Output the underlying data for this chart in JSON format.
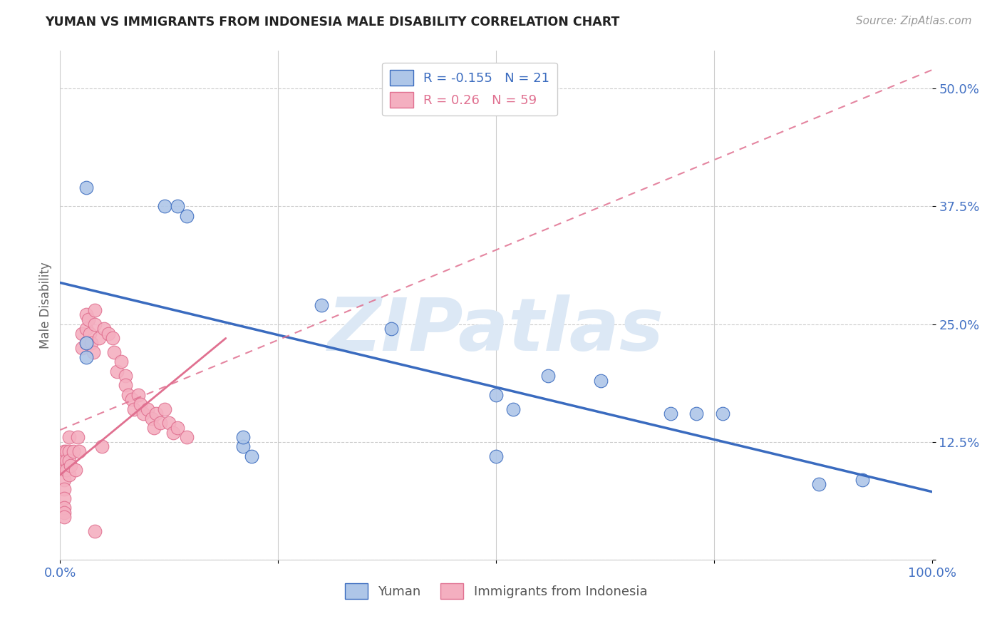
{
  "title": "YUMAN VS IMMIGRANTS FROM INDONESIA MALE DISABILITY CORRELATION CHART",
  "source": "Source: ZipAtlas.com",
  "ylabel": "Male Disability",
  "xlim": [
    0.0,
    1.0
  ],
  "ylim": [
    0.0,
    0.54
  ],
  "yticks": [
    0.0,
    0.125,
    0.25,
    0.375,
    0.5
  ],
  "ytick_labels": [
    "",
    "12.5%",
    "25.0%",
    "37.5%",
    "50.0%"
  ],
  "xticks": [
    0.0,
    0.25,
    0.5,
    0.75,
    1.0
  ],
  "xtick_labels": [
    "0.0%",
    "",
    "",
    "",
    "100.0%"
  ],
  "blue_R": -0.155,
  "blue_N": 21,
  "pink_R": 0.26,
  "pink_N": 59,
  "blue_color": "#aec6e8",
  "pink_color": "#f4afc0",
  "blue_line_color": "#3a6bbf",
  "pink_line_color": "#e07090",
  "watermark": "ZIPatlas",
  "watermark_color": "#dce8f5",
  "legend_label_blue": "Yuman",
  "legend_label_pink": "Immigrants from Indonesia",
  "blue_x": [
    0.03,
    0.12,
    0.135,
    0.145,
    0.3,
    0.38,
    0.5,
    0.52,
    0.56,
    0.62,
    0.7,
    0.73,
    0.76,
    0.87,
    0.92,
    0.03,
    0.03,
    0.21,
    0.22,
    0.21,
    0.5
  ],
  "blue_y": [
    0.395,
    0.375,
    0.375,
    0.365,
    0.27,
    0.245,
    0.175,
    0.16,
    0.195,
    0.19,
    0.155,
    0.155,
    0.155,
    0.08,
    0.085,
    0.23,
    0.215,
    0.12,
    0.11,
    0.13,
    0.11
  ],
  "pink_x": [
    0.005,
    0.005,
    0.005,
    0.005,
    0.005,
    0.005,
    0.005,
    0.005,
    0.005,
    0.007,
    0.007,
    0.007,
    0.01,
    0.01,
    0.01,
    0.01,
    0.012,
    0.015,
    0.018,
    0.02,
    0.022,
    0.025,
    0.025,
    0.03,
    0.03,
    0.03,
    0.032,
    0.034,
    0.036,
    0.038,
    0.04,
    0.04,
    0.045,
    0.048,
    0.05,
    0.055,
    0.06,
    0.062,
    0.065,
    0.07,
    0.075,
    0.075,
    0.078,
    0.082,
    0.085,
    0.09,
    0.092,
    0.095,
    0.1,
    0.105,
    0.108,
    0.11,
    0.115,
    0.12,
    0.125,
    0.13,
    0.135,
    0.145,
    0.04
  ],
  "pink_y": [
    0.115,
    0.105,
    0.095,
    0.085,
    0.075,
    0.065,
    0.055,
    0.05,
    0.045,
    0.115,
    0.105,
    0.095,
    0.13,
    0.115,
    0.105,
    0.09,
    0.1,
    0.115,
    0.095,
    0.13,
    0.115,
    0.24,
    0.225,
    0.26,
    0.245,
    0.23,
    0.255,
    0.24,
    0.23,
    0.22,
    0.265,
    0.25,
    0.235,
    0.12,
    0.245,
    0.24,
    0.235,
    0.22,
    0.2,
    0.21,
    0.195,
    0.185,
    0.175,
    0.17,
    0.16,
    0.175,
    0.165,
    0.155,
    0.16,
    0.15,
    0.14,
    0.155,
    0.145,
    0.16,
    0.145,
    0.135,
    0.14,
    0.13,
    0.03
  ]
}
